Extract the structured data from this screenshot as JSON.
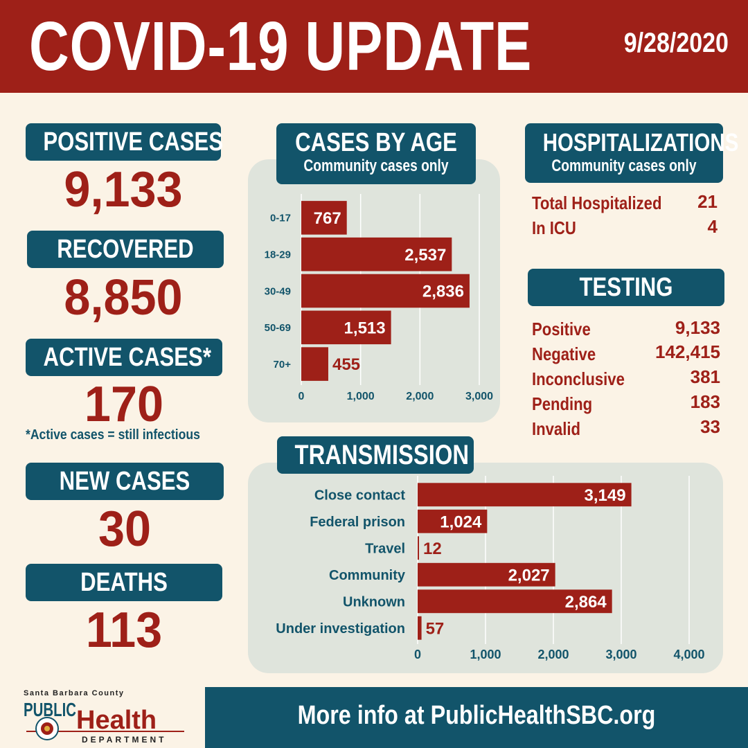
{
  "header": {
    "title": "COVID-19 UPDATE",
    "date": "9/28/2020"
  },
  "left": {
    "positive": {
      "label": "POSITIVE CASES",
      "value": "9,133"
    },
    "recovered": {
      "label": "RECOVERED",
      "value": "8,850"
    },
    "active": {
      "label": "ACTIVE CASES*",
      "value": "170",
      "note": "*Active cases =  still infectious"
    },
    "new_cases": {
      "label": "NEW CASES",
      "value": "30"
    },
    "deaths": {
      "label": "DEATHS",
      "value": "113"
    }
  },
  "age_section": {
    "title": "CASES BY AGE",
    "subtitle": "Community cases only"
  },
  "hospital": {
    "title": "HOSPITALIZATIONS",
    "subtitle": "Community cases only",
    "rows": [
      {
        "label": "Total Hospitalized",
        "value": "21"
      },
      {
        "label": "In ICU",
        "value": "4"
      }
    ]
  },
  "testing": {
    "title": "TESTING",
    "rows": [
      {
        "label": "Positive",
        "value": "9,133"
      },
      {
        "label": "Negative",
        "value": "142,415"
      },
      {
        "label": "Inconclusive",
        "value": "381"
      },
      {
        "label": "Pending",
        "value": "183"
      },
      {
        "label": "Invalid",
        "value": "33"
      }
    ]
  },
  "transmission_section": {
    "title": "TRANSMISSION"
  },
  "colors": {
    "red": "#9e2018",
    "teal": "#12546a",
    "cream": "#fbf3e6",
    "panel": "#dfe4dc"
  },
  "chart_data": [
    {
      "type": "bar",
      "orientation": "horizontal",
      "title": "CASES BY AGE",
      "subtitle": "Community cases only",
      "categories": [
        "0-17",
        "18-29",
        "30-49",
        "50-69",
        "70+"
      ],
      "values": [
        767,
        2537,
        2836,
        1513,
        455
      ],
      "value_labels": [
        "767",
        "2,537",
        "2,836",
        "1,513",
        "455"
      ],
      "xlim": [
        0,
        3000
      ],
      "xticks": [
        0,
        1000,
        2000,
        3000
      ],
      "xtick_labels": [
        "0",
        "1,000",
        "2,000",
        "3,000"
      ],
      "grid": true
    },
    {
      "type": "bar",
      "orientation": "horizontal",
      "title": "TRANSMISSION",
      "categories": [
        "Close contact",
        "Federal prison",
        "Travel",
        "Community",
        "Unknown",
        "Under investigation"
      ],
      "values": [
        3149,
        1024,
        12,
        2027,
        2864,
        57
      ],
      "value_labels": [
        "3,149",
        "1,024",
        "12",
        "2,027",
        "2,864",
        "57"
      ],
      "xlim": [
        0,
        4000
      ],
      "xticks": [
        0,
        1000,
        2000,
        3000,
        4000
      ],
      "xtick_labels": [
        "0",
        "1,000",
        "2,000",
        "3,000",
        "4,000"
      ],
      "grid": true
    }
  ],
  "footer": {
    "logo": {
      "county": "Santa Barbara County",
      "public": "PUBLIC",
      "health": "Health",
      "department": "DEPARTMENT"
    },
    "more_info": "More info at PublicHealthSBC.org"
  }
}
